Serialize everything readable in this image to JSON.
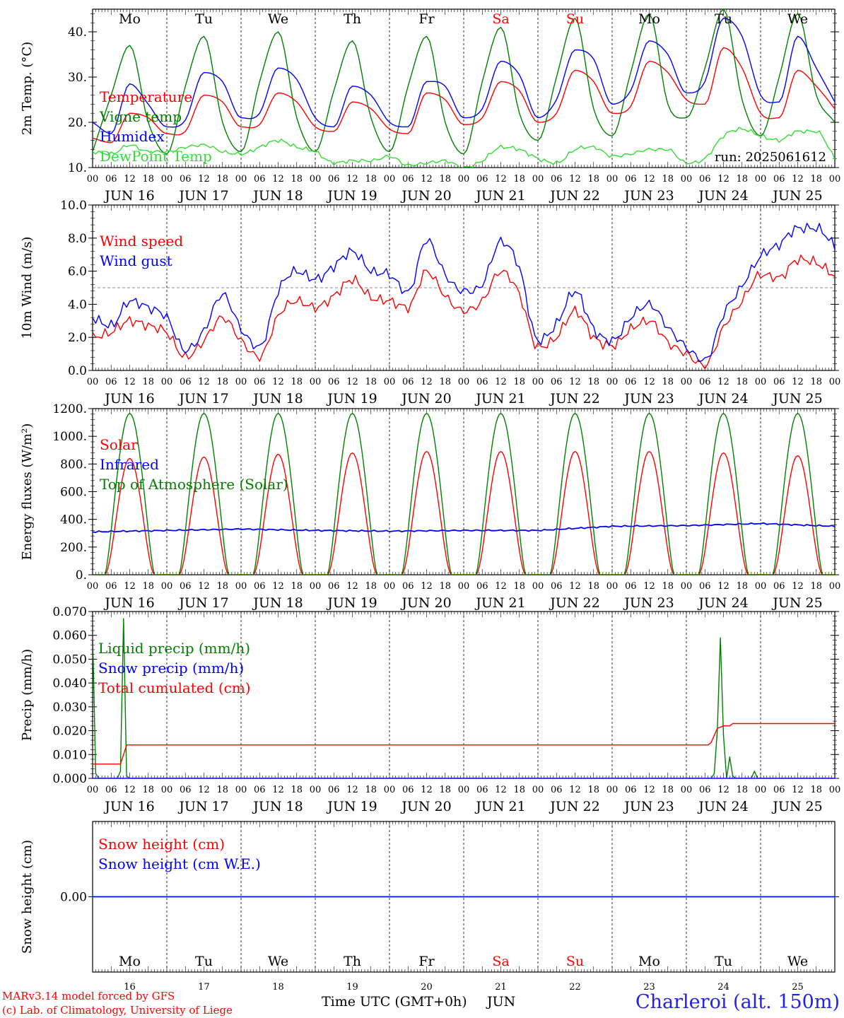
{
  "days": [
    {
      "abbr": "Mo",
      "date": "JUN 16",
      "num": "16",
      "weekend": false
    },
    {
      "abbr": "Tu",
      "date": "JUN 17",
      "num": "17",
      "weekend": false
    },
    {
      "abbr": "We",
      "date": "JUN 18",
      "num": "18",
      "weekend": false
    },
    {
      "abbr": "Th",
      "date": "JUN 19",
      "num": "19",
      "weekend": false
    },
    {
      "abbr": "Fr",
      "date": "JUN 20",
      "num": "20",
      "weekend": false
    },
    {
      "abbr": "Sa",
      "date": "JUN 21",
      "num": "21",
      "weekend": true
    },
    {
      "abbr": "Su",
      "date": "JUN 22",
      "num": "22",
      "weekend": true
    },
    {
      "abbr": "Mo",
      "date": "JUN 23",
      "num": "23",
      "weekend": false
    },
    {
      "abbr": "Tu",
      "date": "JUN 24",
      "num": "24",
      "weekend": false
    },
    {
      "abbr": "We",
      "date": "JUN 25",
      "num": "25",
      "weekend": false
    }
  ],
  "hour_ticks": [
    "00",
    "06",
    "12",
    "18"
  ],
  "colors": {
    "red": "#ff0000",
    "blue": "#0000ff",
    "darkgreen": "#008000",
    "lightgreen": "#33dd33",
    "blueLabel": "#2222ee",
    "weekend": "#ff0000",
    "text": "#000000"
  },
  "footer": {
    "credit_line1": "MARv3.14 model forced by GFS",
    "credit_line2": "(c) Lab. of Climatology, University of Liege",
    "axis_title": "Time UTC (GMT+0h)",
    "month": "JUN",
    "location": "Charleroi (alt. 150m)"
  },
  "chart_data": [
    {
      "type": "line",
      "ylabel": "2m Temp. (°C)",
      "ylim": [
        10,
        45
      ],
      "yticks": [
        10,
        20,
        30,
        40
      ],
      "ytick_labels": [
        "10.",
        "20.",
        "30.",
        "40."
      ],
      "annotation": "run: 2025061612",
      "legend_placement": "top-left",
      "x_unit": "hours since JUN 16 00 UTC",
      "series": [
        {
          "name": "Temperature",
          "color": "red",
          "x": [
            0,
            6,
            12,
            18,
            24,
            30,
            36,
            42,
            48,
            54,
            60,
            66,
            72,
            78,
            84,
            90,
            96,
            102,
            108,
            114,
            120,
            126,
            132,
            138,
            144,
            150,
            156,
            162,
            168,
            174,
            180,
            186,
            192,
            198,
            204,
            210,
            216,
            222,
            228,
            234,
            240
          ],
          "values": [
            16.5,
            15.5,
            22,
            21,
            17.5,
            18,
            26,
            24.5,
            19,
            19.5,
            26.5,
            24.5,
            19,
            18,
            24.5,
            23,
            18.5,
            17.5,
            26.5,
            25,
            19.5,
            21,
            29,
            27,
            20,
            22,
            31.5,
            29,
            22,
            23.5,
            33.5,
            31,
            25,
            24,
            36.5,
            32,
            22,
            21,
            31.5,
            28,
            23
          ]
        },
        {
          "name": "Vigne temp",
          "color": "darkgreen",
          "x": [
            0,
            6,
            12,
            18,
            24,
            30,
            36,
            42,
            48,
            54,
            60,
            66,
            72,
            78,
            84,
            90,
            96,
            102,
            108,
            114,
            120,
            126,
            132,
            138,
            144,
            150,
            156,
            162,
            168,
            174,
            180,
            186,
            192,
            198,
            204,
            210,
            216,
            222,
            228,
            234,
            240
          ],
          "values": [
            13.5,
            26,
            37,
            20,
            13,
            28,
            39,
            20,
            13.5,
            29,
            40,
            21,
            13.5,
            27,
            38,
            21,
            13.5,
            28,
            39,
            20,
            13,
            29,
            41,
            22,
            16,
            30,
            43,
            23,
            17,
            31,
            44,
            24,
            21,
            32,
            45,
            25,
            17,
            30,
            44,
            26,
            20
          ]
        },
        {
          "name": "Humidex",
          "color": "blue",
          "x": [
            0,
            6,
            12,
            18,
            24,
            30,
            36,
            42,
            48,
            54,
            60,
            66,
            72,
            78,
            84,
            90,
            96,
            102,
            108,
            114,
            120,
            126,
            132,
            138,
            144,
            150,
            156,
            162,
            168,
            174,
            180,
            186,
            192,
            198,
            204,
            210,
            216,
            222,
            228,
            234,
            240
          ],
          "values": [
            20,
            17.5,
            28.5,
            24,
            19,
            20.5,
            31,
            29,
            21,
            22,
            32,
            29.5,
            21,
            19,
            28,
            26,
            20,
            19,
            29,
            28,
            21,
            23,
            33.5,
            30.5,
            21,
            25,
            36,
            34,
            24,
            27,
            38,
            35,
            26.5,
            29,
            43,
            39,
            26,
            24.5,
            39,
            32,
            24.5
          ]
        },
        {
          "name": "DewPoint Temp",
          "color": "lightgreen",
          "x": [
            0,
            6,
            12,
            18,
            24,
            30,
            36,
            42,
            48,
            54,
            60,
            66,
            72,
            78,
            84,
            90,
            96,
            102,
            108,
            114,
            120,
            126,
            132,
            138,
            144,
            150,
            156,
            162,
            168,
            174,
            180,
            186,
            192,
            198,
            204,
            210,
            216,
            222,
            228,
            234,
            240
          ],
          "values": [
            13.5,
            13,
            15,
            13.5,
            13.5,
            14.5,
            15,
            13.5,
            13,
            14.5,
            16,
            14.5,
            13.5,
            11,
            11.5,
            11.5,
            12.5,
            10.5,
            11,
            11.5,
            10,
            11.5,
            14.5,
            14,
            12,
            11,
            14,
            14.5,
            12.5,
            13,
            14,
            14,
            11,
            12,
            17,
            18.5,
            17,
            16,
            18,
            18,
            12
          ]
        }
      ]
    },
    {
      "type": "line",
      "ylabel": "10m Wind (m/s)",
      "ylim": [
        0,
        10
      ],
      "yticks": [
        0,
        2,
        4,
        6,
        8,
        10
      ],
      "ytick_labels": [
        "0.0",
        "2.0",
        "4.0",
        "6.0",
        "8.0",
        "10.0"
      ],
      "reference_line": 5,
      "legend_placement": "top-left",
      "x_unit": "hours since JUN 16 00 UTC",
      "series": [
        {
          "name": "Wind speed",
          "color": "red",
          "x": [
            0,
            6,
            12,
            18,
            24,
            30,
            36,
            42,
            48,
            54,
            60,
            66,
            72,
            78,
            84,
            90,
            96,
            102,
            108,
            114,
            120,
            126,
            132,
            138,
            144,
            150,
            156,
            162,
            168,
            174,
            180,
            186,
            192,
            198,
            204,
            210,
            216,
            222,
            228,
            234,
            240
          ],
          "values": [
            2,
            2.3,
            3,
            2.7,
            2.3,
            0.8,
            1.8,
            3.2,
            1.8,
            0.8,
            3.3,
            4.2,
            3.8,
            4.5,
            5.5,
            4.4,
            4.2,
            3.8,
            6,
            4.5,
            3.6,
            4.2,
            6,
            4.6,
            1.4,
            2,
            3.6,
            2,
            1.5,
            2.5,
            3,
            1.7,
            1,
            0.3,
            2.6,
            4.2,
            5.8,
            5.6,
            6.7,
            6.5,
            5.7
          ]
        },
        {
          "name": "Wind gust",
          "color": "blue",
          "x": [
            0,
            6,
            12,
            18,
            24,
            30,
            36,
            42,
            48,
            54,
            60,
            66,
            72,
            78,
            84,
            90,
            96,
            102,
            108,
            114,
            120,
            126,
            132,
            138,
            144,
            150,
            156,
            162,
            168,
            174,
            180,
            186,
            192,
            198,
            204,
            210,
            216,
            222,
            228,
            234,
            240
          ],
          "values": [
            3.2,
            2.7,
            4.2,
            3.8,
            3.2,
            1.2,
            2.4,
            4.6,
            2.5,
            1.4,
            4.8,
            6,
            5.5,
            6.3,
            7.2,
            6,
            5.8,
            4.7,
            7.9,
            5.8,
            4.8,
            5.2,
            7.8,
            6.2,
            1.8,
            2.8,
            4.8,
            2.5,
            1.8,
            3.2,
            4,
            2.6,
            1.4,
            0.6,
            3.4,
            5.1,
            6.9,
            7.6,
            8.6,
            8.6,
            7.5
          ]
        }
      ]
    },
    {
      "type": "line",
      "ylabel": "Energy fluxes (W/m²)",
      "ylim": [
        0,
        1200
      ],
      "yticks": [
        0,
        200,
        400,
        600,
        800,
        1000,
        1200
      ],
      "ytick_labels": [
        "0.",
        "200.",
        "400.",
        "600.",
        "800.",
        "1000.",
        "1200."
      ],
      "legend_placement": "top-left",
      "diurnal": {
        "sunrise_hour": 4,
        "sunset_hour": 20,
        "noon_hour": 12
      },
      "series": [
        {
          "name": "Solar",
          "color": "red",
          "daily_peaks": [
            840,
            850,
            870,
            880,
            890,
            890,
            890,
            890,
            880,
            860
          ]
        },
        {
          "name": "Infrared",
          "color": "blue",
          "x": [
            0,
            24,
            48,
            72,
            96,
            120,
            144,
            168,
            192,
            216,
            240
          ],
          "values": [
            310,
            320,
            330,
            320,
            315,
            320,
            320,
            350,
            355,
            370,
            350
          ]
        },
        {
          "name": "Top of Atmosphere (Solar)",
          "color": "darkgreen",
          "daily_peaks": [
            1165,
            1165,
            1165,
            1165,
            1165,
            1165,
            1165,
            1165,
            1165,
            1165
          ]
        }
      ]
    },
    {
      "type": "line",
      "ylabel": "Precip (mm/h)",
      "ylim": [
        0,
        0.07
      ],
      "yticks": [
        0,
        0.01,
        0.02,
        0.03,
        0.04,
        0.05,
        0.06,
        0.07
      ],
      "ytick_labels": [
        "0.000",
        "0.010",
        "0.020",
        "0.030",
        "0.040",
        "0.050",
        "0.060",
        "0.070"
      ],
      "legend_placement": "top-left",
      "x_unit": "hours since JUN 16 00 UTC",
      "series": [
        {
          "name": "Liquid precip (mm/h)",
          "color": "darkgreen",
          "x": [
            0,
            1,
            2,
            8,
            9,
            10,
            11,
            12,
            13,
            200,
            201,
            202,
            203,
            204,
            205,
            206,
            207,
            208,
            209,
            210,
            213,
            214,
            215,
            240
          ],
          "values": [
            0.061,
            0.002,
            0,
            0,
            0.003,
            0.067,
            0.001,
            0,
            0,
            0,
            0.002,
            0.02,
            0.059,
            0.018,
            0,
            0.009,
            0.001,
            0,
            0,
            0,
            0,
            0.003,
            0,
            0
          ]
        },
        {
          "name": "Snow precip (mm/h)",
          "color": "blue",
          "x": [
            0,
            240
          ],
          "values": [
            0,
            0
          ]
        },
        {
          "name": "Total cumulated (cm)",
          "color": "red",
          "x": [
            0,
            9,
            10,
            11,
            199,
            200,
            201,
            202,
            204,
            206,
            207,
            209,
            210,
            240
          ],
          "values": [
            0.006,
            0.006,
            0.01,
            0.014,
            0.014,
            0.015,
            0.018,
            0.021,
            0.022,
            0.022,
            0.023,
            0.023,
            0.023,
            0.023
          ]
        }
      ]
    },
    {
      "type": "line",
      "ylabel": "Snow height (cm)",
      "ylim": [
        -0.01,
        0.01
      ],
      "yticks": [
        0
      ],
      "ytick_labels": [
        "0.00"
      ],
      "legend_placement": "top-left",
      "series": [
        {
          "name": "Snow height (cm)",
          "color": "red",
          "x": [
            0,
            240
          ],
          "values": [
            0,
            0
          ]
        },
        {
          "name": "Snow height (cm W.E.)",
          "color": "blue",
          "x": [
            0,
            240
          ],
          "values": [
            0,
            0
          ]
        }
      ]
    }
  ]
}
